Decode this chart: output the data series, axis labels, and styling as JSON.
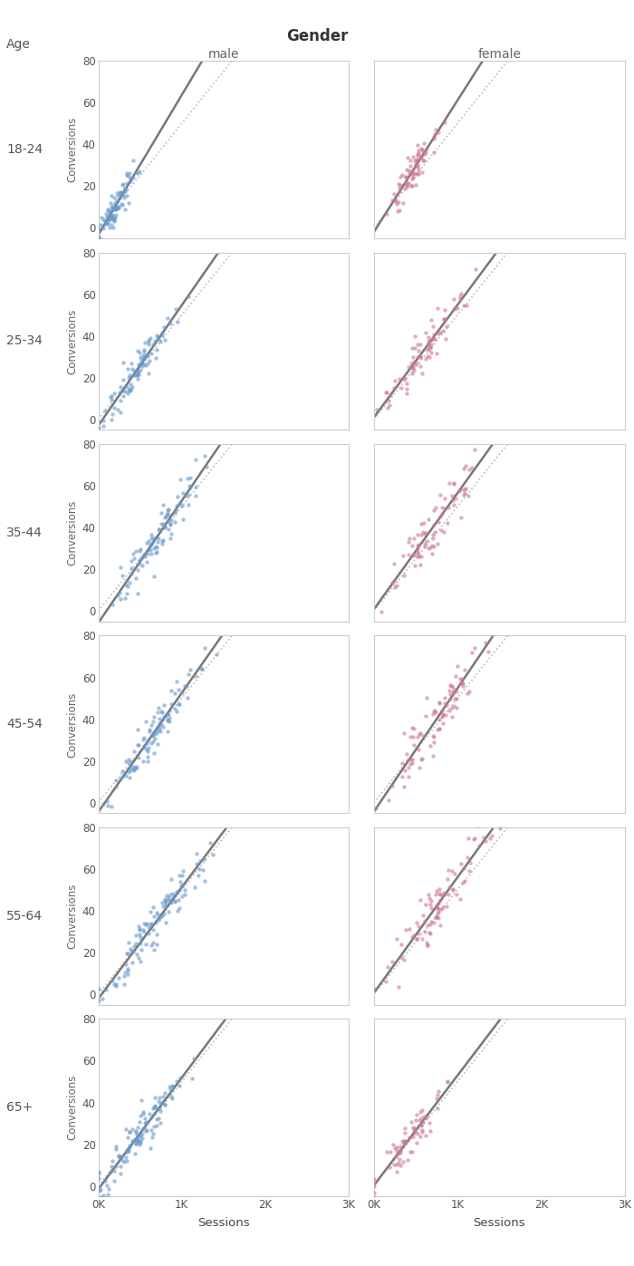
{
  "title": "Gender",
  "col_labels": [
    "male",
    "female"
  ],
  "row_labels": [
    "18-24",
    "25-34",
    "35-44",
    "45-54",
    "55-64",
    "65+"
  ],
  "age_label": "Age",
  "xlabel": "Sessions",
  "ylabel": "Conversions",
  "xlim": [
    0,
    3000
  ],
  "ylim": [
    -5,
    80
  ],
  "xticks": [
    0,
    1000,
    2000,
    3000
  ],
  "yticks": [
    0,
    20,
    40,
    60,
    80
  ],
  "male_color": "#6699cc",
  "female_color": "#cc7799",
  "point_size": 10,
  "point_alpha": 0.6,
  "regression_line_color": "#777777",
  "reference_line_color": "#bbbbbb",
  "background_color": "#ffffff",
  "cohorts": {
    "18-24": {
      "male": {
        "n": 90,
        "x_center": 200,
        "x_spread": 120,
        "slope": 0.06,
        "intercept": -2.0,
        "noise": 3.5
      },
      "female": {
        "n": 80,
        "x_center": 450,
        "x_spread": 130,
        "slope": 0.062,
        "intercept": -2.0,
        "noise": 4.0
      }
    },
    "25-34": {
      "male": {
        "n": 90,
        "x_center": 500,
        "x_spread": 200,
        "slope": 0.055,
        "intercept": -1.0,
        "noise": 4.0
      },
      "female": {
        "n": 80,
        "x_center": 600,
        "x_spread": 220,
        "slope": 0.058,
        "intercept": -1.0,
        "noise": 5.0
      }
    },
    "35-44": {
      "male": {
        "n": 100,
        "x_center": 700,
        "x_spread": 300,
        "slope": 0.055,
        "intercept": -2.0,
        "noise": 5.0
      },
      "female": {
        "n": 80,
        "x_center": 700,
        "x_spread": 260,
        "slope": 0.058,
        "intercept": -1.5,
        "noise": 6.0
      }
    },
    "45-54": {
      "male": {
        "n": 100,
        "x_center": 650,
        "x_spread": 280,
        "slope": 0.053,
        "intercept": -1.5,
        "noise": 5.0
      },
      "female": {
        "n": 90,
        "x_center": 750,
        "x_spread": 300,
        "slope": 0.056,
        "intercept": -1.5,
        "noise": 6.0
      }
    },
    "55-64": {
      "male": {
        "n": 110,
        "x_center": 700,
        "x_spread": 320,
        "slope": 0.054,
        "intercept": -2.0,
        "noise": 5.0
      },
      "female": {
        "n": 90,
        "x_center": 800,
        "x_spread": 330,
        "slope": 0.057,
        "intercept": -1.5,
        "noise": 6.0
      }
    },
    "65+": {
      "male": {
        "n": 120,
        "x_center": 500,
        "x_spread": 280,
        "slope": 0.052,
        "intercept": -1.0,
        "noise": 4.5
      },
      "female": {
        "n": 70,
        "x_center": 400,
        "x_spread": 200,
        "slope": 0.055,
        "intercept": -1.0,
        "noise": 4.0
      }
    }
  },
  "ref_slope": 0.05,
  "reg_slope_global": 0.06
}
